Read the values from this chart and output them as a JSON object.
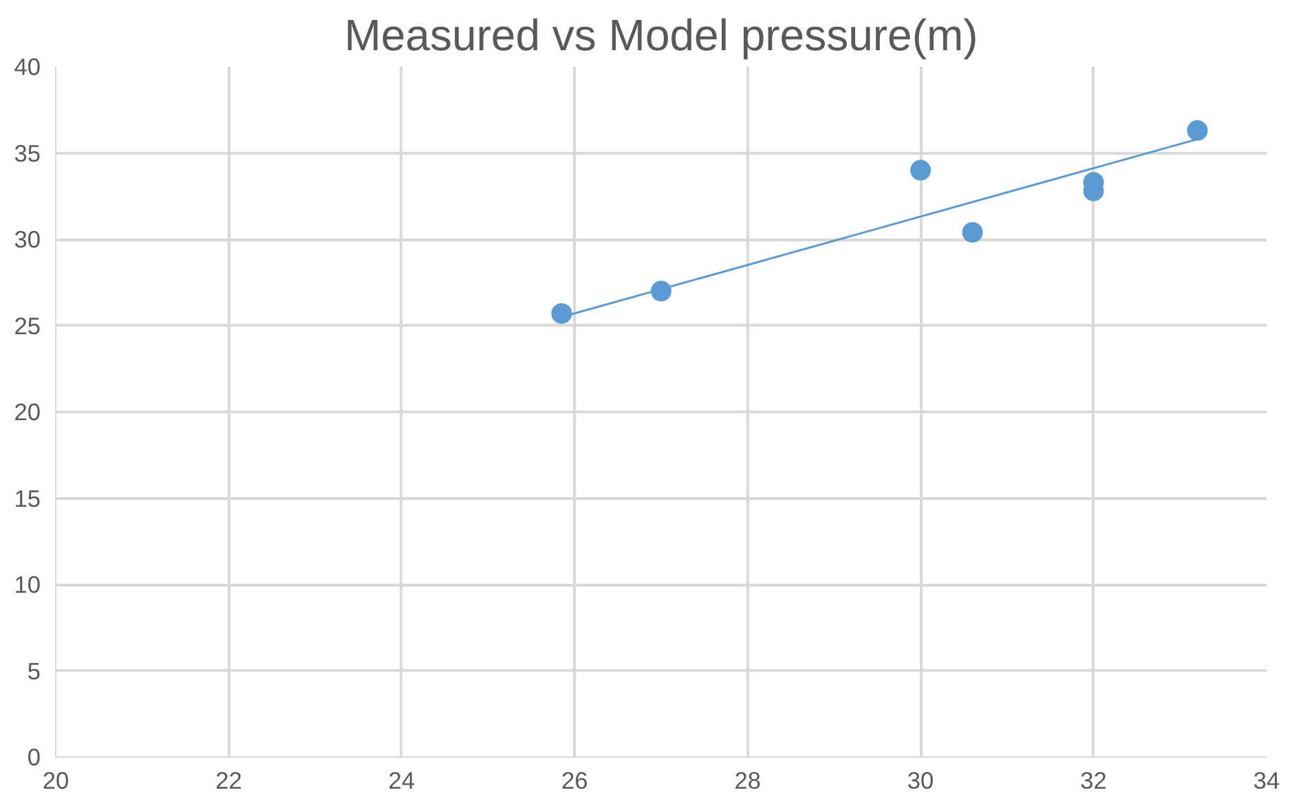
{
  "chart_data": {
    "type": "scatter",
    "title": "Measured vs Model pressure(m)",
    "series": [
      {
        "color": "#5b9bd5",
        "marker": "circle",
        "x": [
          25.85,
          27.0,
          30.0,
          30.6,
          32.0,
          32.0,
          33.2
        ],
        "values": [
          25.7,
          27.0,
          34.0,
          30.4,
          33.3,
          32.8,
          36.3
        ]
      },
      {
        "type": "line",
        "color": "#5b9bd5",
        "marker": "none",
        "x": [
          25.85,
          33.2
        ],
        "values": [
          25.5,
          35.8
        ]
      }
    ],
    "xlim": [
      20,
      34
    ],
    "xticks": [
      20,
      22,
      24,
      26,
      28,
      30,
      32,
      34
    ],
    "ylim": [
      0,
      40
    ],
    "yticks": [
      0,
      5,
      10,
      15,
      20,
      25,
      30,
      35,
      40
    ],
    "grid": true
  }
}
